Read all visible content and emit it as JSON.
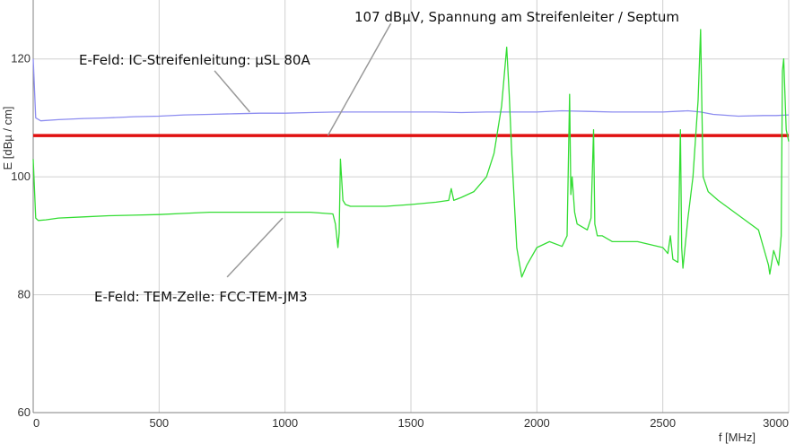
{
  "chart_data": {
    "type": "line",
    "title": "",
    "xlabel": "f [MHz]",
    "ylabel": "E [dBµ / cm]",
    "xlim": [
      0,
      3000
    ],
    "ylim": [
      60,
      130
    ],
    "x_ticks": [
      0,
      500,
      1000,
      1500,
      2000,
      2500,
      3000
    ],
    "y_ticks": [
      60,
      80,
      100,
      120
    ],
    "grid": true,
    "legend": "none",
    "colors": {
      "blue": "#8c8cf0",
      "red": "#e01010",
      "green": "#33dd33"
    },
    "annotations": [
      {
        "text": "107 dBµV, Spannung am Streifenleiter / Septum",
        "arrow_from": [
          1420,
          126
        ],
        "arrow_to": [
          1170,
          107
        ]
      },
      {
        "text": "E-Feld: IC-Streifenleitung:  µSL 80A",
        "arrow_from": [
          720,
          118
        ],
        "arrow_to": [
          860,
          111
        ]
      },
      {
        "text": "E-Feld: TEM-Zelle:  FCC-TEM-JM3",
        "arrow_from": [
          770,
          83
        ],
        "arrow_to": [
          990,
          93
        ]
      }
    ],
    "series": [
      {
        "color": "blue",
        "x": [
          0,
          10,
          30,
          100,
          200,
          300,
          400,
          500,
          600,
          700,
          800,
          900,
          1000,
          1100,
          1200,
          1300,
          1400,
          1500,
          1600,
          1700,
          1800,
          1900,
          2000,
          2100,
          2200,
          2300,
          2400,
          2500,
          2600,
          2650,
          2700,
          2800,
          2900,
          2950,
          3000
        ],
        "y": [
          120,
          110,
          109.5,
          109.7,
          109.9,
          110,
          110.2,
          110.3,
          110.5,
          110.6,
          110.7,
          110.8,
          110.8,
          110.9,
          111,
          111,
          111,
          111,
          111,
          110.9,
          111,
          111,
          111,
          111.2,
          111.1,
          111,
          111,
          111,
          111.2,
          111,
          110.6,
          110.3,
          110.4,
          110.4,
          110.5
        ]
      },
      {
        "color": "red",
        "x": [
          0,
          3000
        ],
        "y": [
          107,
          107
        ]
      },
      {
        "color": "green",
        "x": [
          0,
          10,
          20,
          50,
          100,
          200,
          300,
          400,
          500,
          600,
          700,
          800,
          900,
          1000,
          1100,
          1190,
          1200,
          1210,
          1215,
          1220,
          1230,
          1240,
          1260,
          1300,
          1400,
          1500,
          1600,
          1650,
          1660,
          1670,
          1700,
          1750,
          1800,
          1830,
          1860,
          1880,
          1890,
          1900,
          1920,
          1940,
          1960,
          2000,
          2050,
          2100,
          2120,
          2130,
          2135,
          2140,
          2150,
          2160,
          2200,
          2215,
          2225,
          2230,
          2240,
          2260,
          2300,
          2400,
          2500,
          2520,
          2530,
          2540,
          2560,
          2570,
          2575,
          2580,
          2600,
          2620,
          2640,
          2650,
          2655,
          2660,
          2680,
          2720,
          2800,
          2880,
          2900,
          2920,
          2925,
          2940,
          2960,
          2970,
          2975,
          2980,
          2990,
          3000
        ],
        "y": [
          103,
          93,
          92.6,
          92.7,
          93,
          93.2,
          93.4,
          93.5,
          93.6,
          93.8,
          94,
          94,
          94,
          94,
          94,
          93.7,
          92,
          88,
          90.5,
          103,
          96,
          95.3,
          95,
          95,
          95,
          95.3,
          95.7,
          96,
          98,
          96,
          96.5,
          97.5,
          100,
          104,
          112,
          122,
          114,
          104,
          88,
          83,
          85,
          88,
          89,
          88.2,
          90,
          114,
          97,
          100,
          94,
          92,
          91,
          93,
          108,
          92,
          90,
          90,
          89,
          89,
          88,
          87,
          90,
          86,
          85.5,
          108,
          88,
          84.5,
          93,
          100,
          113,
          125,
          112,
          100,
          97.5,
          96,
          93.5,
          91,
          88,
          85,
          83.5,
          87.5,
          85,
          90,
          118,
          120,
          108,
          106
        ]
      }
    ]
  }
}
